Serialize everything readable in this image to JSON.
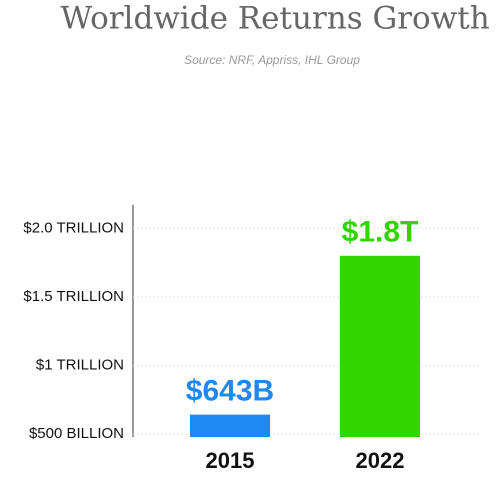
{
  "chart_data": {
    "type": "bar",
    "title": "Worldwide Returns Growth",
    "subtitle": "Source: NRF, Appriss, IHL Group",
    "categories": [
      "2015",
      "2022"
    ],
    "values": [
      643,
      1800
    ],
    "value_labels": [
      "$643B",
      "$1.8T"
    ],
    "colors": [
      "#1f88f5",
      "#33d400"
    ],
    "ylim": [
      480,
      2170
    ],
    "yticks": [
      {
        "value": 500,
        "label": "$500 BILLION"
      },
      {
        "value": 1000,
        "label": "$1 TRILLION"
      },
      {
        "value": 1500,
        "label": "$1.5 TRILLION"
      },
      {
        "value": 2000,
        "label": "$2.0 TRILLION"
      }
    ],
    "grid": true
  }
}
